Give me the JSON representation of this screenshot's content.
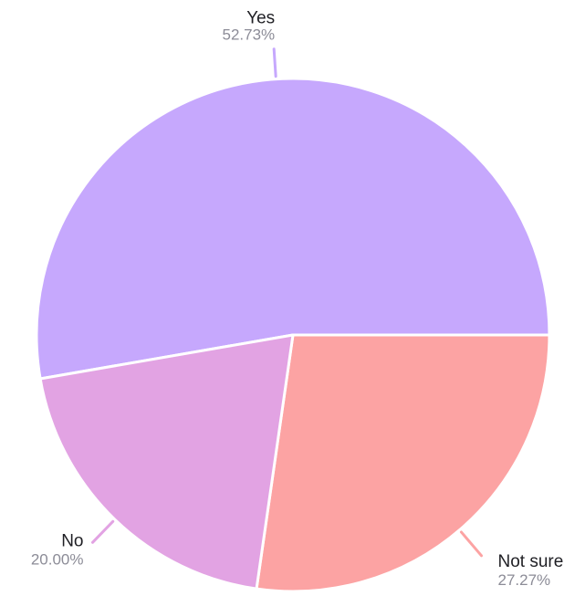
{
  "chart_data": {
    "type": "pie",
    "title": "",
    "slices": [
      {
        "label": "Yes",
        "percent_label": "52.73%",
        "value": 52.73,
        "color": "#c6a8fd"
      },
      {
        "label": "Not sure",
        "percent_label": "27.27%",
        "value": 27.27,
        "color": "#fca3a3"
      },
      {
        "label": "No",
        "percent_label": "20.00%",
        "value": 20.0,
        "color": "#e2a3e3"
      }
    ],
    "legend": "none",
    "label_colors": {
      "name": "#1f1f24",
      "percent": "#8c8c97"
    }
  }
}
